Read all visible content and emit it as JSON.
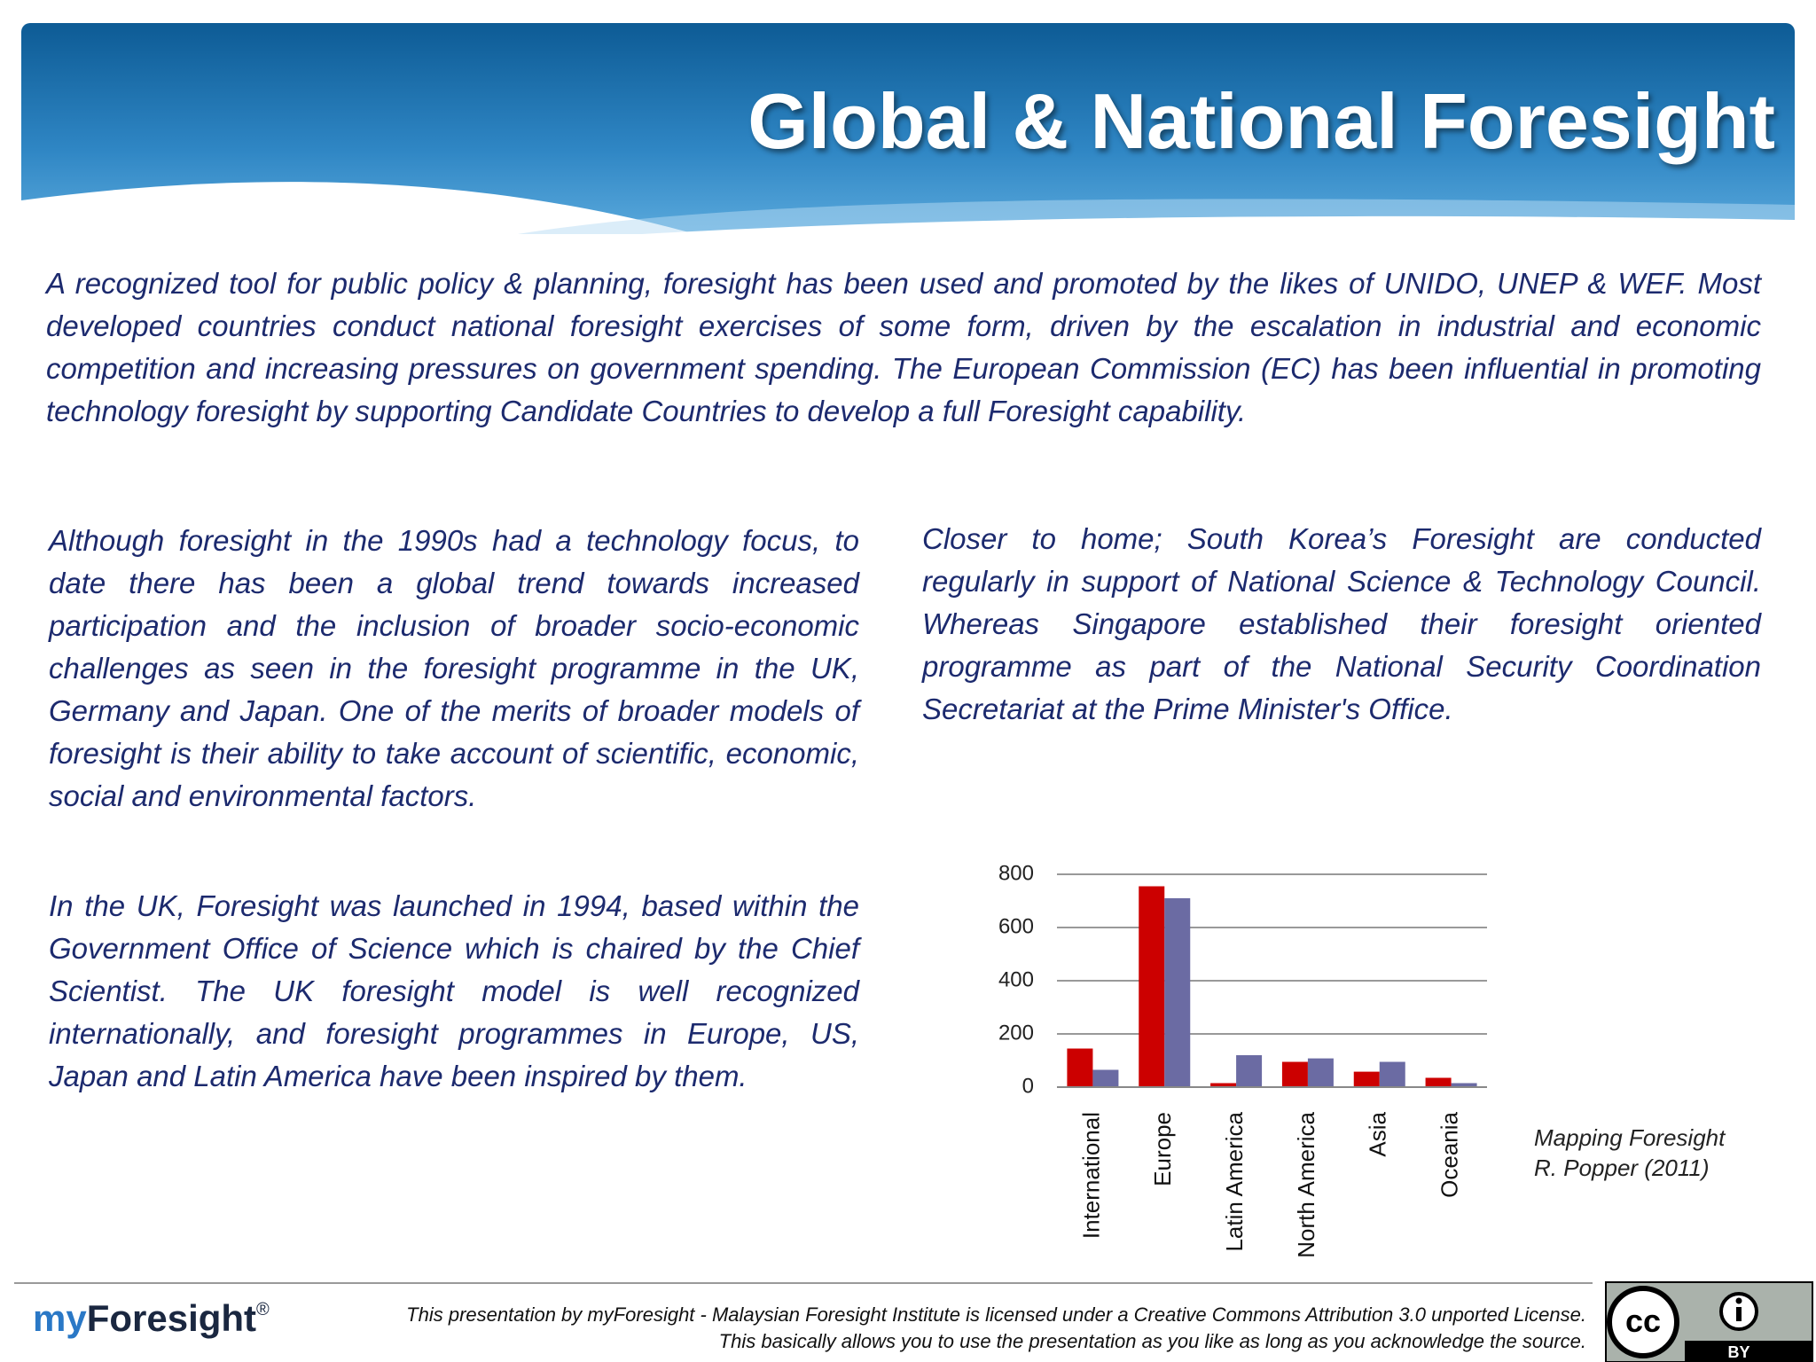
{
  "header": {
    "title": "Global & National Foresight"
  },
  "intro": "A recognized tool for public policy & planning, foresight has been used and promoted by the likes of UNIDO, UNEP & WEF. Most developed countries conduct national foresight exercises of some form, driven by the escalation in industrial and economic competition and increasing pressures on government spending. The European Commission (EC) has been influential in promoting technology foresight by supporting Candidate Countries to  develop a full Foresight capability.",
  "left_column": [
    "Although foresight in the 1990s had a technology focus, to date there has been a global trend towards increased participation and the inclusion of broader socio-economic challenges as seen in the foresight programme in the UK, Germany and Japan. One of the merits of broader models of foresight is their ability to take account of scientific, economic, social and environmental factors.",
    "In the UK, Foresight was launched in 1994, based within the Government Office of Science which is chaired by the Chief Scientist. The UK foresight model is well recognized internationally, and foresight programmes in Europe, US, Japan and Latin America have been inspired by them."
  ],
  "right_column": "Closer to home; South Korea’s Foresight are conducted regularly in support of National Science & Technology Council. Whereas Singapore established their foresight oriented programme as part of the National Security Coordination Secretariat at the Prime Minister's Office.",
  "chart_data": {
    "type": "bar",
    "categories": [
      "International",
      "Europe",
      "Latin America",
      "North America",
      "Asia",
      "Oceania"
    ],
    "series": [
      {
        "color": "#cc0000",
        "values": [
          145,
          755,
          15,
          95,
          58,
          35
        ]
      },
      {
        "color": "#6b6ba3",
        "values": [
          65,
          710,
          120,
          108,
          95,
          15
        ]
      }
    ],
    "ylim": [
      0,
      800
    ],
    "yticks": [
      0,
      200,
      400,
      600,
      800
    ],
    "grid": true
  },
  "chart_source": [
    "Mapping Foresight",
    "R. Popper (2011)"
  ],
  "footer": {
    "logo": {
      "prefix": "my",
      "name": "Foresight",
      "mark": "®"
    },
    "license": [
      "This presentation by myForesight - Malaysian Foresight Institute is licensed under a Creative Commons Attribution 3.0 unported License.",
      "This basically allows you to use the presentation as you like as long as you acknowledge the source."
    ],
    "badge": {
      "cc": "cc",
      "by": "BY"
    }
  }
}
